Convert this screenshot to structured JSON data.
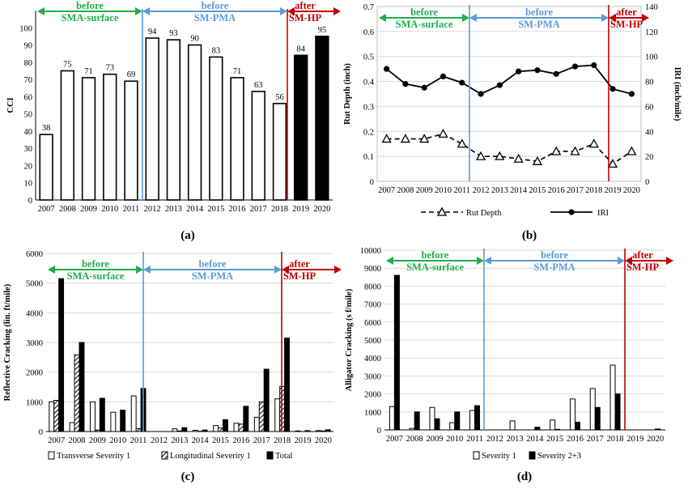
{
  "years": [
    "2007",
    "2008",
    "2009",
    "2010",
    "2011",
    "2012",
    "2013",
    "2014",
    "2015",
    "2016",
    "2017",
    "2018",
    "2019",
    "2020"
  ],
  "periods": [
    {
      "line1": "before",
      "line2": "SMA-surface",
      "color": "#1fae4b"
    },
    {
      "line1": "before",
      "line2": "SM-PMA",
      "color": "#5b9bd5"
    },
    {
      "line1": "after",
      "line2": "SM-HP",
      "color": "#c00000"
    }
  ],
  "panels": {
    "a": {
      "label": "(a)",
      "ylabel": "CCI"
    },
    "b": {
      "label": "(b)",
      "ylabel_left": "Rut Depth (inch)",
      "ylabel_right": "IRI (inch/mile)",
      "legend": [
        "Rut Depth",
        "IRI"
      ]
    },
    "c": {
      "label": "(c)",
      "ylabel": "Reflective Cracking (lin. ft/mile)",
      "legend": [
        "Transverse Severity 1",
        "Longitudinal Severity 1",
        "Total"
      ]
    },
    "d": {
      "label": "(d)",
      "ylabel": "Alligator Cracking (s f/mile)",
      "legend": [
        "Severity 1",
        "Severity 2+3"
      ]
    }
  },
  "chart_data": [
    {
      "id": "a",
      "type": "bar",
      "categories": [
        "2007",
        "2008",
        "2009",
        "2010",
        "2011",
        "2012",
        "2013",
        "2014",
        "2015",
        "2016",
        "2017",
        "2018",
        "2019",
        "2020"
      ],
      "values": [
        38,
        75,
        71,
        73,
        69,
        94,
        93,
        90,
        83,
        71,
        63,
        56,
        84,
        95
      ],
      "ylabel": "CCI",
      "ylim": [
        0,
        110
      ],
      "yticks": [
        0,
        10,
        20,
        30,
        40,
        50,
        60,
        70,
        80,
        90,
        100
      ],
      "filled_categories": [
        "2019",
        "2020"
      ],
      "grid": false
    },
    {
      "id": "b",
      "type": "line",
      "categories": [
        "2007",
        "2008",
        "2009",
        "2010",
        "2011",
        "2012",
        "2013",
        "2014",
        "2015",
        "2016",
        "2017",
        "2018",
        "2019",
        "2020"
      ],
      "series": [
        {
          "name": "Rut Depth",
          "axis": "left",
          "style": "dashed-triangle",
          "values": [
            0.17,
            0.17,
            0.17,
            0.19,
            0.15,
            0.1,
            0.1,
            0.09,
            0.08,
            0.12,
            0.12,
            0.15,
            0.07,
            0.12
          ]
        },
        {
          "name": "IRI",
          "axis": "right",
          "style": "solid-circle",
          "values": [
            90,
            78,
            75,
            84,
            79,
            70,
            77,
            88,
            89,
            86,
            92,
            93,
            74,
            70
          ]
        }
      ],
      "ylabel": "Rut Depth (inch)",
      "y2label": "IRI (inch/mile)",
      "ylim": [
        0,
        0.7
      ],
      "y2lim": [
        0,
        140
      ],
      "yticks": [
        0,
        0.1,
        0.2,
        0.3,
        0.4,
        0.5,
        0.6,
        0.7
      ],
      "y2ticks": [
        0,
        20,
        40,
        60,
        80,
        100,
        120,
        140
      ],
      "grid": true,
      "legend_position": "bottom"
    },
    {
      "id": "c",
      "type": "bar",
      "categories": [
        "2007",
        "2008",
        "2009",
        "2010",
        "2011",
        "2012",
        "2013",
        "2014",
        "2015",
        "2016",
        "2017",
        "2018",
        "2019",
        "2020"
      ],
      "series": [
        {
          "name": "Transverse Severity 1",
          "style": "white",
          "values": [
            1000,
            300,
            1000,
            650,
            1200,
            0,
            90,
            40,
            200,
            280,
            480,
            1100,
            20,
            30
          ]
        },
        {
          "name": "Longitudinal Severity 1",
          "style": "hatched",
          "values": [
            1050,
            2580,
            50,
            0,
            100,
            0,
            20,
            10,
            120,
            250,
            1000,
            1520,
            0,
            20
          ]
        },
        {
          "name": "Total",
          "style": "black",
          "values": [
            5150,
            3000,
            1120,
            720,
            1450,
            0,
            130,
            50,
            400,
            850,
            2100,
            3150,
            30,
            60
          ]
        }
      ],
      "ylabel": "Reflective Cracking (lin. ft/mile)",
      "ylim": [
        0,
        6000
      ],
      "yticks": [
        0,
        1000,
        2000,
        3000,
        4000,
        5000,
        6000
      ],
      "grid": true,
      "legend_position": "bottom"
    },
    {
      "id": "d",
      "type": "bar",
      "categories": [
        "2007",
        "2008",
        "2009",
        "2010",
        "2011",
        "2012",
        "2013",
        "2014",
        "2015",
        "2016",
        "2017",
        "2018",
        "2019",
        "2020"
      ],
      "series": [
        {
          "name": "Severity 1",
          "style": "white",
          "values": [
            1300,
            80,
            1250,
            400,
            1080,
            0,
            500,
            0,
            550,
            1720,
            2300,
            3600,
            0,
            0
          ]
        },
        {
          "name": "Severity 2+3",
          "style": "black",
          "values": [
            8600,
            1000,
            620,
            1000,
            1350,
            0,
            0,
            150,
            30,
            430,
            1250,
            2000,
            0,
            50
          ]
        }
      ],
      "ylabel": "Alligator Cracking (s f/mile)",
      "ylim": [
        0,
        10000
      ],
      "yticks": [
        0,
        1000,
        2000,
        3000,
        4000,
        5000,
        6000,
        7000,
        8000,
        9000,
        10000
      ],
      "grid": true,
      "legend_position": "bottom"
    }
  ]
}
